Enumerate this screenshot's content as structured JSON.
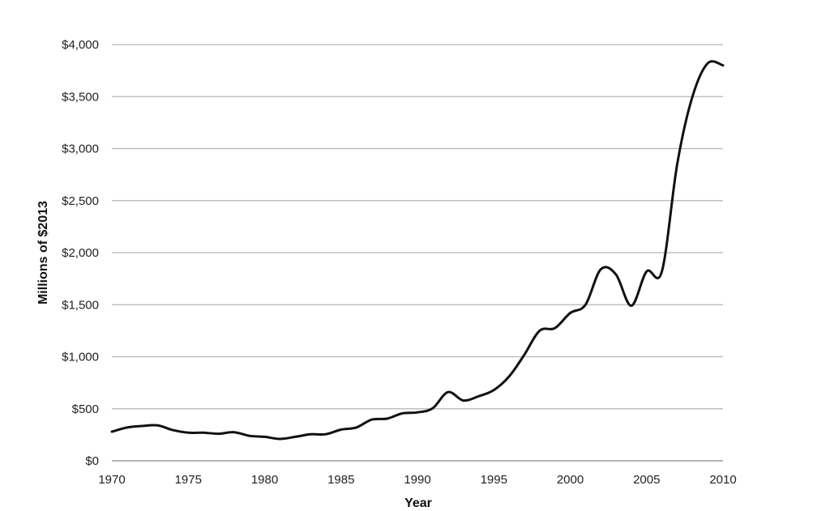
{
  "chart_data": {
    "type": "line",
    "title": "",
    "xlabel": "Year",
    "ylabel": "Millions of $2013",
    "xlim": [
      1970,
      2010
    ],
    "ylim": [
      0,
      4000
    ],
    "grid": true,
    "legend": "none",
    "x_ticks": [
      "1970",
      "1975",
      "1980",
      "1985",
      "1990",
      "1995",
      "2000",
      "2005",
      "2010"
    ],
    "y_ticks": [
      "$0",
      "$500",
      "$1,000",
      "$1,500",
      "$2,000",
      "$2,500",
      "$3,000",
      "$3,500",
      "$4,000"
    ],
    "x_tick_values": [
      1970,
      1975,
      1980,
      1985,
      1990,
      1995,
      2000,
      2005,
      2010
    ],
    "y_tick_values": [
      0,
      500,
      1000,
      1500,
      2000,
      2500,
      3000,
      3500,
      4000
    ],
    "series": [
      {
        "x": [
          1970,
          1971,
          1972,
          1973,
          1974,
          1975,
          1976,
          1977,
          1978,
          1979,
          1980,
          1981,
          1982,
          1983,
          1984,
          1985,
          1986,
          1987,
          1988,
          1989,
          1990,
          1991,
          1992,
          1993,
          1994,
          1995,
          1996,
          1997,
          1998,
          1999,
          2000,
          2001,
          2002,
          2003,
          2004,
          2005,
          2006,
          2007,
          2008,
          2009,
          2010
        ],
        "values": [
          280,
          320,
          335,
          340,
          295,
          270,
          270,
          260,
          275,
          240,
          230,
          210,
          230,
          255,
          255,
          300,
          320,
          395,
          405,
          455,
          465,
          505,
          660,
          580,
          620,
          680,
          810,
          1020,
          1250,
          1275,
          1420,
          1500,
          1840,
          1790,
          1490,
          1820,
          1820,
          2850,
          3500,
          3820,
          3800
        ]
      }
    ],
    "colors": {
      "line": "#111111",
      "grid": "#b5b5b5",
      "axis": "#9a9a9a"
    }
  }
}
